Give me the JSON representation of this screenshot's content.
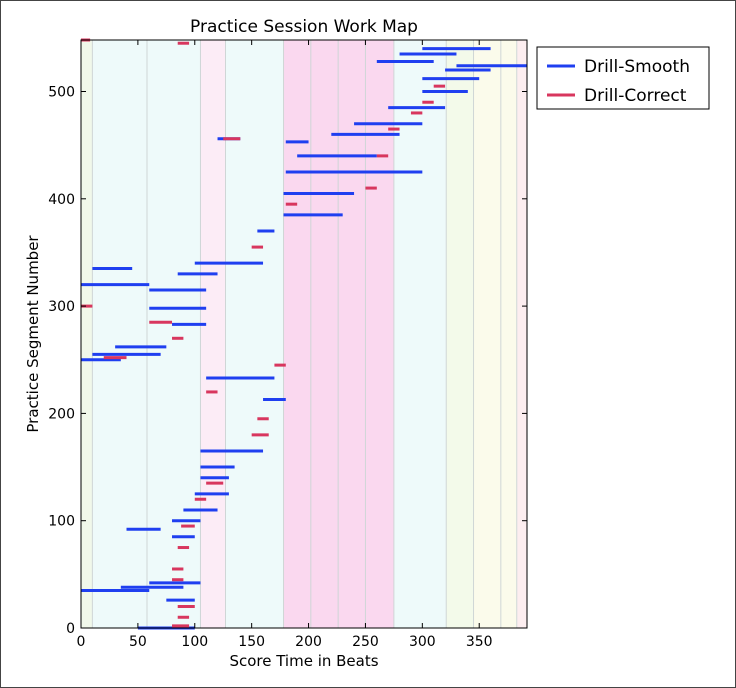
{
  "chart_data": {
    "type": "line",
    "title": "Practice Session Work Map",
    "xlabel": "Score Time in Beats",
    "ylabel": "Practice Segment Number",
    "xlim": [
      0,
      392
    ],
    "ylim": [
      0,
      548
    ],
    "xticks": [
      0,
      50,
      100,
      150,
      200,
      250,
      300,
      350
    ],
    "yticks": [
      0,
      100,
      200,
      300,
      400,
      500
    ],
    "tick_labels_x": [
      "0",
      "50",
      "100",
      "150",
      "200",
      "250",
      "300",
      "350"
    ],
    "tick_labels_y": [
      "0",
      "100",
      "200",
      "300",
      "400",
      "500"
    ],
    "legend": {
      "placement": "outside-top-right"
    },
    "section_bands": [
      {
        "x0": 0,
        "x1": 10,
        "color": "#f1f8ea"
      },
      {
        "x0": 10,
        "x1": 58,
        "color": "#eefafa"
      },
      {
        "x0": 58,
        "x1": 105,
        "color": "#eefafa"
      },
      {
        "x0": 105,
        "x1": 127,
        "color": "#fcecf6"
      },
      {
        "x0": 127,
        "x1": 178,
        "color": "#eefafa"
      },
      {
        "x0": 178,
        "x1": 202,
        "color": "#fad8ef"
      },
      {
        "x0": 202,
        "x1": 226,
        "color": "#fad8ef"
      },
      {
        "x0": 226,
        "x1": 250,
        "color": "#fad8ef"
      },
      {
        "x0": 250,
        "x1": 275,
        "color": "#fad8ef"
      },
      {
        "x0": 275,
        "x1": 321,
        "color": "#eefafa"
      },
      {
        "x0": 321,
        "x1": 345,
        "color": "#f3faea"
      },
      {
        "x0": 345,
        "x1": 369,
        "color": "#fbfbeb"
      },
      {
        "x0": 369,
        "x1": 383,
        "color": "#fbfbeb"
      },
      {
        "x0": 383,
        "x1": 392,
        "color": "#fdeef0"
      }
    ],
    "section_lines": [
      10,
      58,
      105,
      127,
      178,
      202,
      226,
      250,
      275,
      321,
      345,
      369,
      383
    ],
    "series": [
      {
        "name": "Drill-Smooth",
        "color": "#1f3ff0",
        "segments": [
          [
            50,
            100,
            0
          ],
          [
            75,
            100,
            26
          ],
          [
            0,
            60,
            35
          ],
          [
            35,
            90,
            38
          ],
          [
            60,
            105,
            42
          ],
          [
            40,
            70,
            92
          ],
          [
            80,
            100,
            85
          ],
          [
            80,
            105,
            100
          ],
          [
            90,
            120,
            110
          ],
          [
            100,
            130,
            125
          ],
          [
            105,
            130,
            140
          ],
          [
            105,
            135,
            150
          ],
          [
            105,
            160,
            165
          ],
          [
            160,
            180,
            213
          ],
          [
            110,
            170,
            233
          ],
          [
            120,
            140,
            456
          ],
          [
            180,
            200,
            453
          ],
          [
            155,
            170,
            370
          ],
          [
            178,
            230,
            385
          ],
          [
            178,
            240,
            405
          ],
          [
            180,
            300,
            425
          ],
          [
            190,
            260,
            440
          ],
          [
            220,
            280,
            460
          ],
          [
            240,
            300,
            470
          ],
          [
            270,
            320,
            485
          ],
          [
            300,
            340,
            500
          ],
          [
            300,
            350,
            512
          ],
          [
            320,
            360,
            520
          ],
          [
            330,
            392,
            524
          ],
          [
            280,
            330,
            535
          ],
          [
            300,
            360,
            540
          ],
          [
            260,
            310,
            528
          ],
          [
            10,
            45,
            335
          ],
          [
            0,
            60,
            320
          ],
          [
            60,
            110,
            315
          ],
          [
            85,
            120,
            330
          ],
          [
            100,
            160,
            340
          ],
          [
            60,
            110,
            298
          ],
          [
            80,
            110,
            283
          ],
          [
            30,
            75,
            262
          ],
          [
            10,
            70,
            255
          ],
          [
            0,
            35,
            250
          ]
        ]
      },
      {
        "name": "Drill-Correct",
        "color": "#d8365e",
        "segments": [
          [
            80,
            95,
            2
          ],
          [
            85,
            95,
            10
          ],
          [
            85,
            100,
            20
          ],
          [
            80,
            90,
            45
          ],
          [
            80,
            90,
            55
          ],
          [
            85,
            95,
            75
          ],
          [
            88,
            100,
            95
          ],
          [
            100,
            110,
            120
          ],
          [
            110,
            125,
            135
          ],
          [
            150,
            165,
            180
          ],
          [
            155,
            165,
            195
          ],
          [
            110,
            120,
            220
          ],
          [
            170,
            180,
            245
          ],
          [
            125,
            140,
            456
          ],
          [
            150,
            160,
            355
          ],
          [
            180,
            190,
            395
          ],
          [
            250,
            260,
            410
          ],
          [
            260,
            270,
            440
          ],
          [
            270,
            280,
            465
          ],
          [
            290,
            300,
            480
          ],
          [
            300,
            310,
            490
          ],
          [
            310,
            320,
            505
          ],
          [
            0,
            8,
            548
          ],
          [
            85,
            95,
            545
          ],
          [
            0,
            10,
            300
          ],
          [
            80,
            90,
            270
          ],
          [
            60,
            80,
            285
          ],
          [
            20,
            40,
            252
          ]
        ]
      }
    ]
  }
}
